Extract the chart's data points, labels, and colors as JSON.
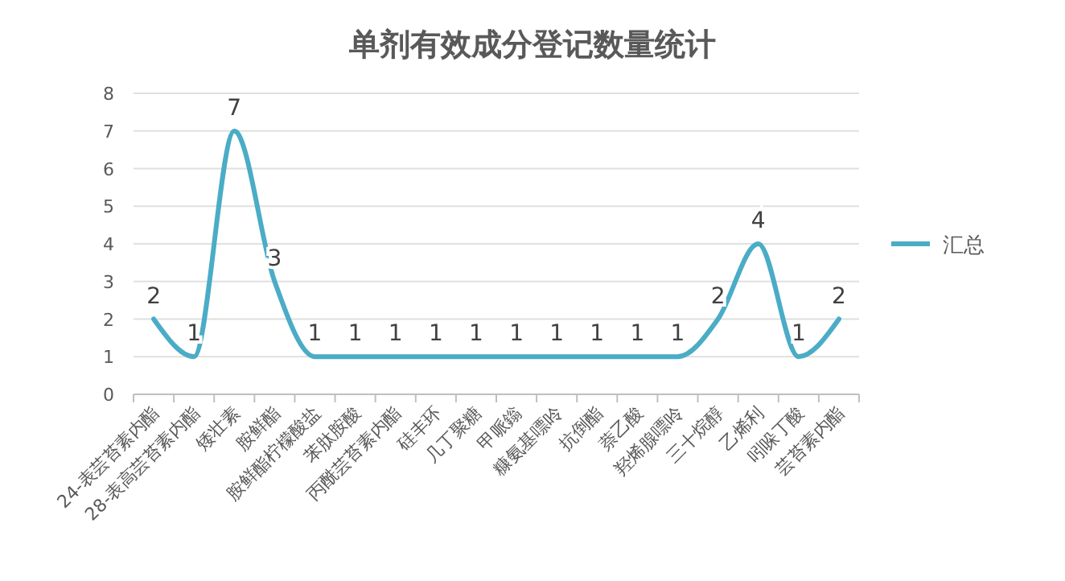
{
  "chart_data": {
    "type": "line",
    "title": "单剂有效成分登记数量统计",
    "categories": [
      "24-表芸苔素内酯",
      "28-表高芸苔素内酯",
      "矮壮素",
      "胺鲜酯",
      "胺鲜酯柠檬酸盐",
      "苯肽胺酸",
      "丙酰芸苔素内酯",
      "硅丰环",
      "几丁聚糖",
      "甲哌鎓",
      "糠氨基嘌呤",
      "抗倒酯",
      "萘乙酸",
      "羟烯腺嘌呤",
      "三十烷醇",
      "乙烯利",
      "吲哚丁酸",
      "芸苔素内酯"
    ],
    "series": [
      {
        "name": "汇总",
        "color": "#4bacc6",
        "values": [
          2,
          1,
          7,
          3,
          1,
          1,
          1,
          1,
          1,
          1,
          1,
          1,
          1,
          1,
          2,
          4,
          1,
          2
        ]
      }
    ],
    "ylim": [
      0,
      8
    ],
    "yticks": [
      0,
      1,
      2,
      3,
      4,
      5,
      6,
      7,
      8
    ],
    "grid": "y",
    "legend": "right",
    "data_labels": true,
    "marker": "none",
    "line_style": "solid"
  }
}
